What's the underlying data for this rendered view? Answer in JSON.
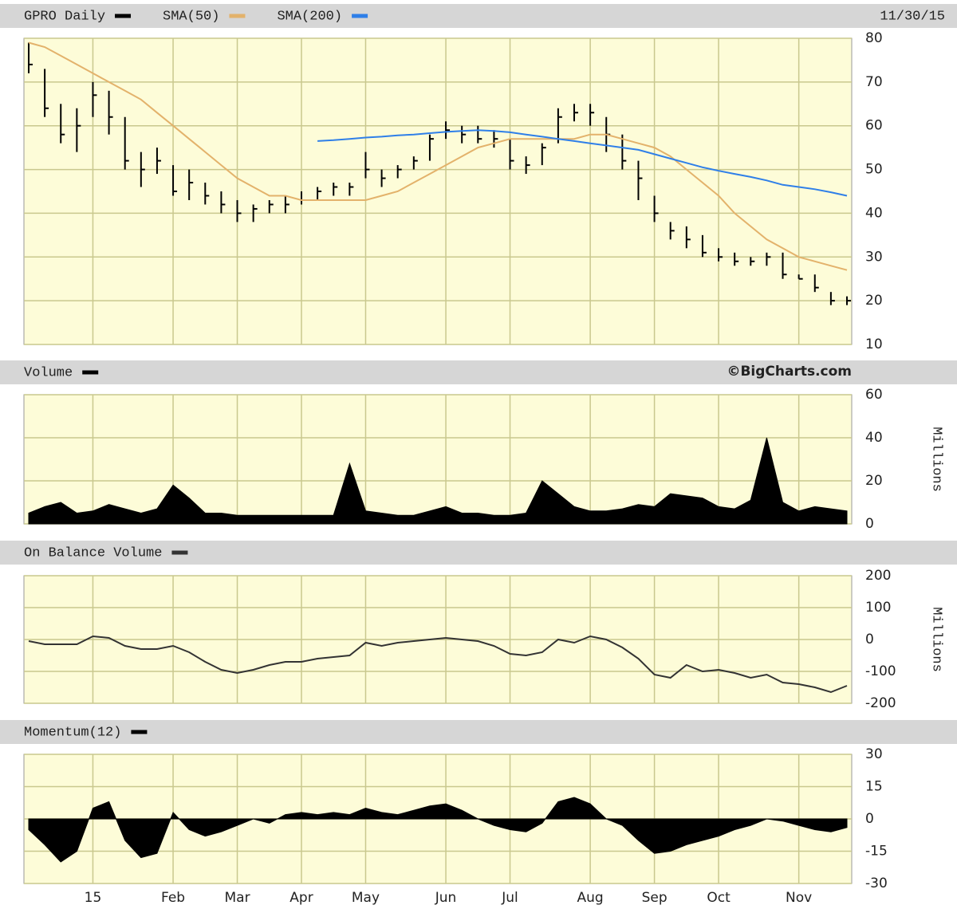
{
  "chart_data": [
    {
      "type": "hlc",
      "date": "11/30/15",
      "ylim": [
        10,
        80
      ],
      "yticks": [
        10,
        20,
        30,
        40,
        50,
        60,
        70,
        80
      ],
      "grid": true,
      "series": [
        {
          "name": "GPRO Daily",
          "color": "#000000",
          "high": [
            79,
            73,
            65,
            64,
            70,
            68,
            62,
            54,
            55,
            51,
            50,
            47,
            45,
            43,
            42,
            43,
            44,
            45,
            46,
            47,
            47,
            54,
            50,
            51,
            53,
            58,
            61,
            60,
            60,
            59,
            57,
            53,
            56,
            64,
            65,
            65,
            62,
            58,
            52,
            44,
            38,
            37,
            35,
            32,
            31,
            30,
            31,
            31,
            26,
            26,
            22,
            21
          ],
          "low": [
            72,
            62,
            56,
            54,
            62,
            58,
            50,
            46,
            49,
            44,
            43,
            42,
            40,
            38,
            38,
            40,
            40,
            42,
            43,
            44,
            44,
            48,
            46,
            48,
            50,
            52,
            57,
            56,
            56,
            55,
            50,
            49,
            51,
            56,
            61,
            60,
            54,
            50,
            43,
            38,
            34,
            32,
            30,
            29,
            28,
            28,
            28,
            25,
            25,
            22,
            19,
            19
          ],
          "close": [
            74,
            64,
            58,
            60,
            67,
            62,
            52,
            50,
            52,
            45,
            47,
            44,
            42,
            40,
            41,
            42,
            42,
            43,
            45,
            46,
            46,
            50,
            48,
            50,
            52,
            57,
            59,
            58,
            57,
            57,
            52,
            51,
            55,
            62,
            63,
            63,
            58,
            52,
            48,
            40,
            36,
            34,
            31,
            30,
            29,
            29,
            30,
            26,
            25,
            23,
            20,
            20
          ]
        },
        {
          "name": "SMA(50)",
          "color": "#e3b26b",
          "values": [
            79,
            78,
            76,
            74,
            72,
            70,
            68,
            66,
            63,
            60,
            57,
            54,
            51,
            48,
            46,
            44,
            44,
            43,
            43,
            43,
            43,
            43,
            44,
            45,
            47,
            49,
            51,
            53,
            55,
            56,
            57,
            57,
            57,
            57,
            57,
            58,
            58,
            57,
            56,
            55,
            53,
            50,
            47,
            44,
            40,
            37,
            34,
            32,
            30,
            29,
            28,
            27
          ]
        },
        {
          "name": "SMA(200)",
          "color": "#2f7fe8",
          "values": [
            null,
            null,
            null,
            null,
            null,
            null,
            null,
            null,
            null,
            null,
            null,
            null,
            null,
            null,
            null,
            null,
            null,
            null,
            56.5,
            56.7,
            57,
            57.3,
            57.5,
            57.8,
            58,
            58.3,
            58.6,
            58.8,
            59,
            58.8,
            58.5,
            58,
            57.5,
            57,
            56.5,
            56,
            55.5,
            55,
            54.5,
            53.5,
            52.5,
            51.5,
            50.5,
            49.7,
            49,
            48.3,
            47.5,
            46.5,
            46,
            45.5,
            44.8,
            44
          ]
        }
      ]
    },
    {
      "type": "area",
      "annotation": "©BigCharts.com",
      "ylabel": "Millions",
      "ylim": [
        0,
        60
      ],
      "yticks": [
        0,
        20,
        40,
        60
      ],
      "grid": true,
      "series": [
        {
          "name": "Volume",
          "color": "#000000",
          "values": [
            5,
            8,
            10,
            5,
            6,
            9,
            7,
            5,
            7,
            18,
            12,
            5,
            5,
            4,
            4,
            4,
            4,
            4,
            4,
            4,
            28,
            6,
            5,
            4,
            4,
            6,
            8,
            5,
            5,
            4,
            4,
            5,
            20,
            14,
            8,
            6,
            6,
            7,
            9,
            8,
            14,
            13,
            12,
            8,
            7,
            11,
            40,
            10,
            6,
            8,
            7,
            6
          ]
        }
      ]
    },
    {
      "type": "line",
      "ylabel": "Millions",
      "ylim": [
        -200,
        200
      ],
      "yticks": [
        -200,
        -100,
        0,
        100,
        200
      ],
      "grid": true,
      "series": [
        {
          "name": "On Balance Volume",
          "color": "#333333",
          "values": [
            -5,
            -15,
            -15,
            -15,
            10,
            5,
            -20,
            -30,
            -30,
            -20,
            -40,
            -70,
            -95,
            -105,
            -95,
            -80,
            -70,
            -70,
            -60,
            -55,
            -50,
            -10,
            -20,
            -10,
            -5,
            0,
            5,
            0,
            -5,
            -20,
            -45,
            -50,
            -40,
            0,
            -10,
            10,
            0,
            -25,
            -60,
            -110,
            -120,
            -80,
            -100,
            -95,
            -105,
            -120,
            -110,
            -135,
            -140,
            -150,
            -165,
            -145
          ]
        }
      ]
    },
    {
      "type": "area",
      "ylim": [
        -30,
        30
      ],
      "yticks": [
        -30,
        -15,
        0,
        15,
        30
      ],
      "grid": true,
      "categories": [
        null,
        null,
        null,
        null,
        "15",
        null,
        null,
        null,
        null,
        "Feb",
        null,
        null,
        null,
        "Mar",
        null,
        null,
        null,
        "Apr",
        null,
        null,
        null,
        "May",
        null,
        null,
        null,
        null,
        "Jun",
        null,
        null,
        null,
        "Jul",
        null,
        null,
        null,
        null,
        "Aug",
        null,
        null,
        null,
        "Sep",
        null,
        null,
        null,
        "Oct",
        null,
        null,
        null,
        null,
        "Nov",
        null,
        null,
        null
      ],
      "series": [
        {
          "name": "Momentum(12)",
          "color": "#000000",
          "values": [
            -5,
            -12,
            -20,
            -15,
            5,
            8,
            -10,
            -18,
            -16,
            3,
            -5,
            -8,
            -6,
            -3,
            0,
            -2,
            2,
            3,
            2,
            3,
            2,
            5,
            3,
            2,
            4,
            6,
            7,
            4,
            0,
            -3,
            -5,
            -6,
            -2,
            8,
            10,
            7,
            0,
            -3,
            -10,
            -16,
            -15,
            -12,
            -10,
            -8,
            -5,
            -3,
            0,
            -1,
            -3,
            -5,
            -6,
            -4
          ]
        }
      ]
    }
  ]
}
